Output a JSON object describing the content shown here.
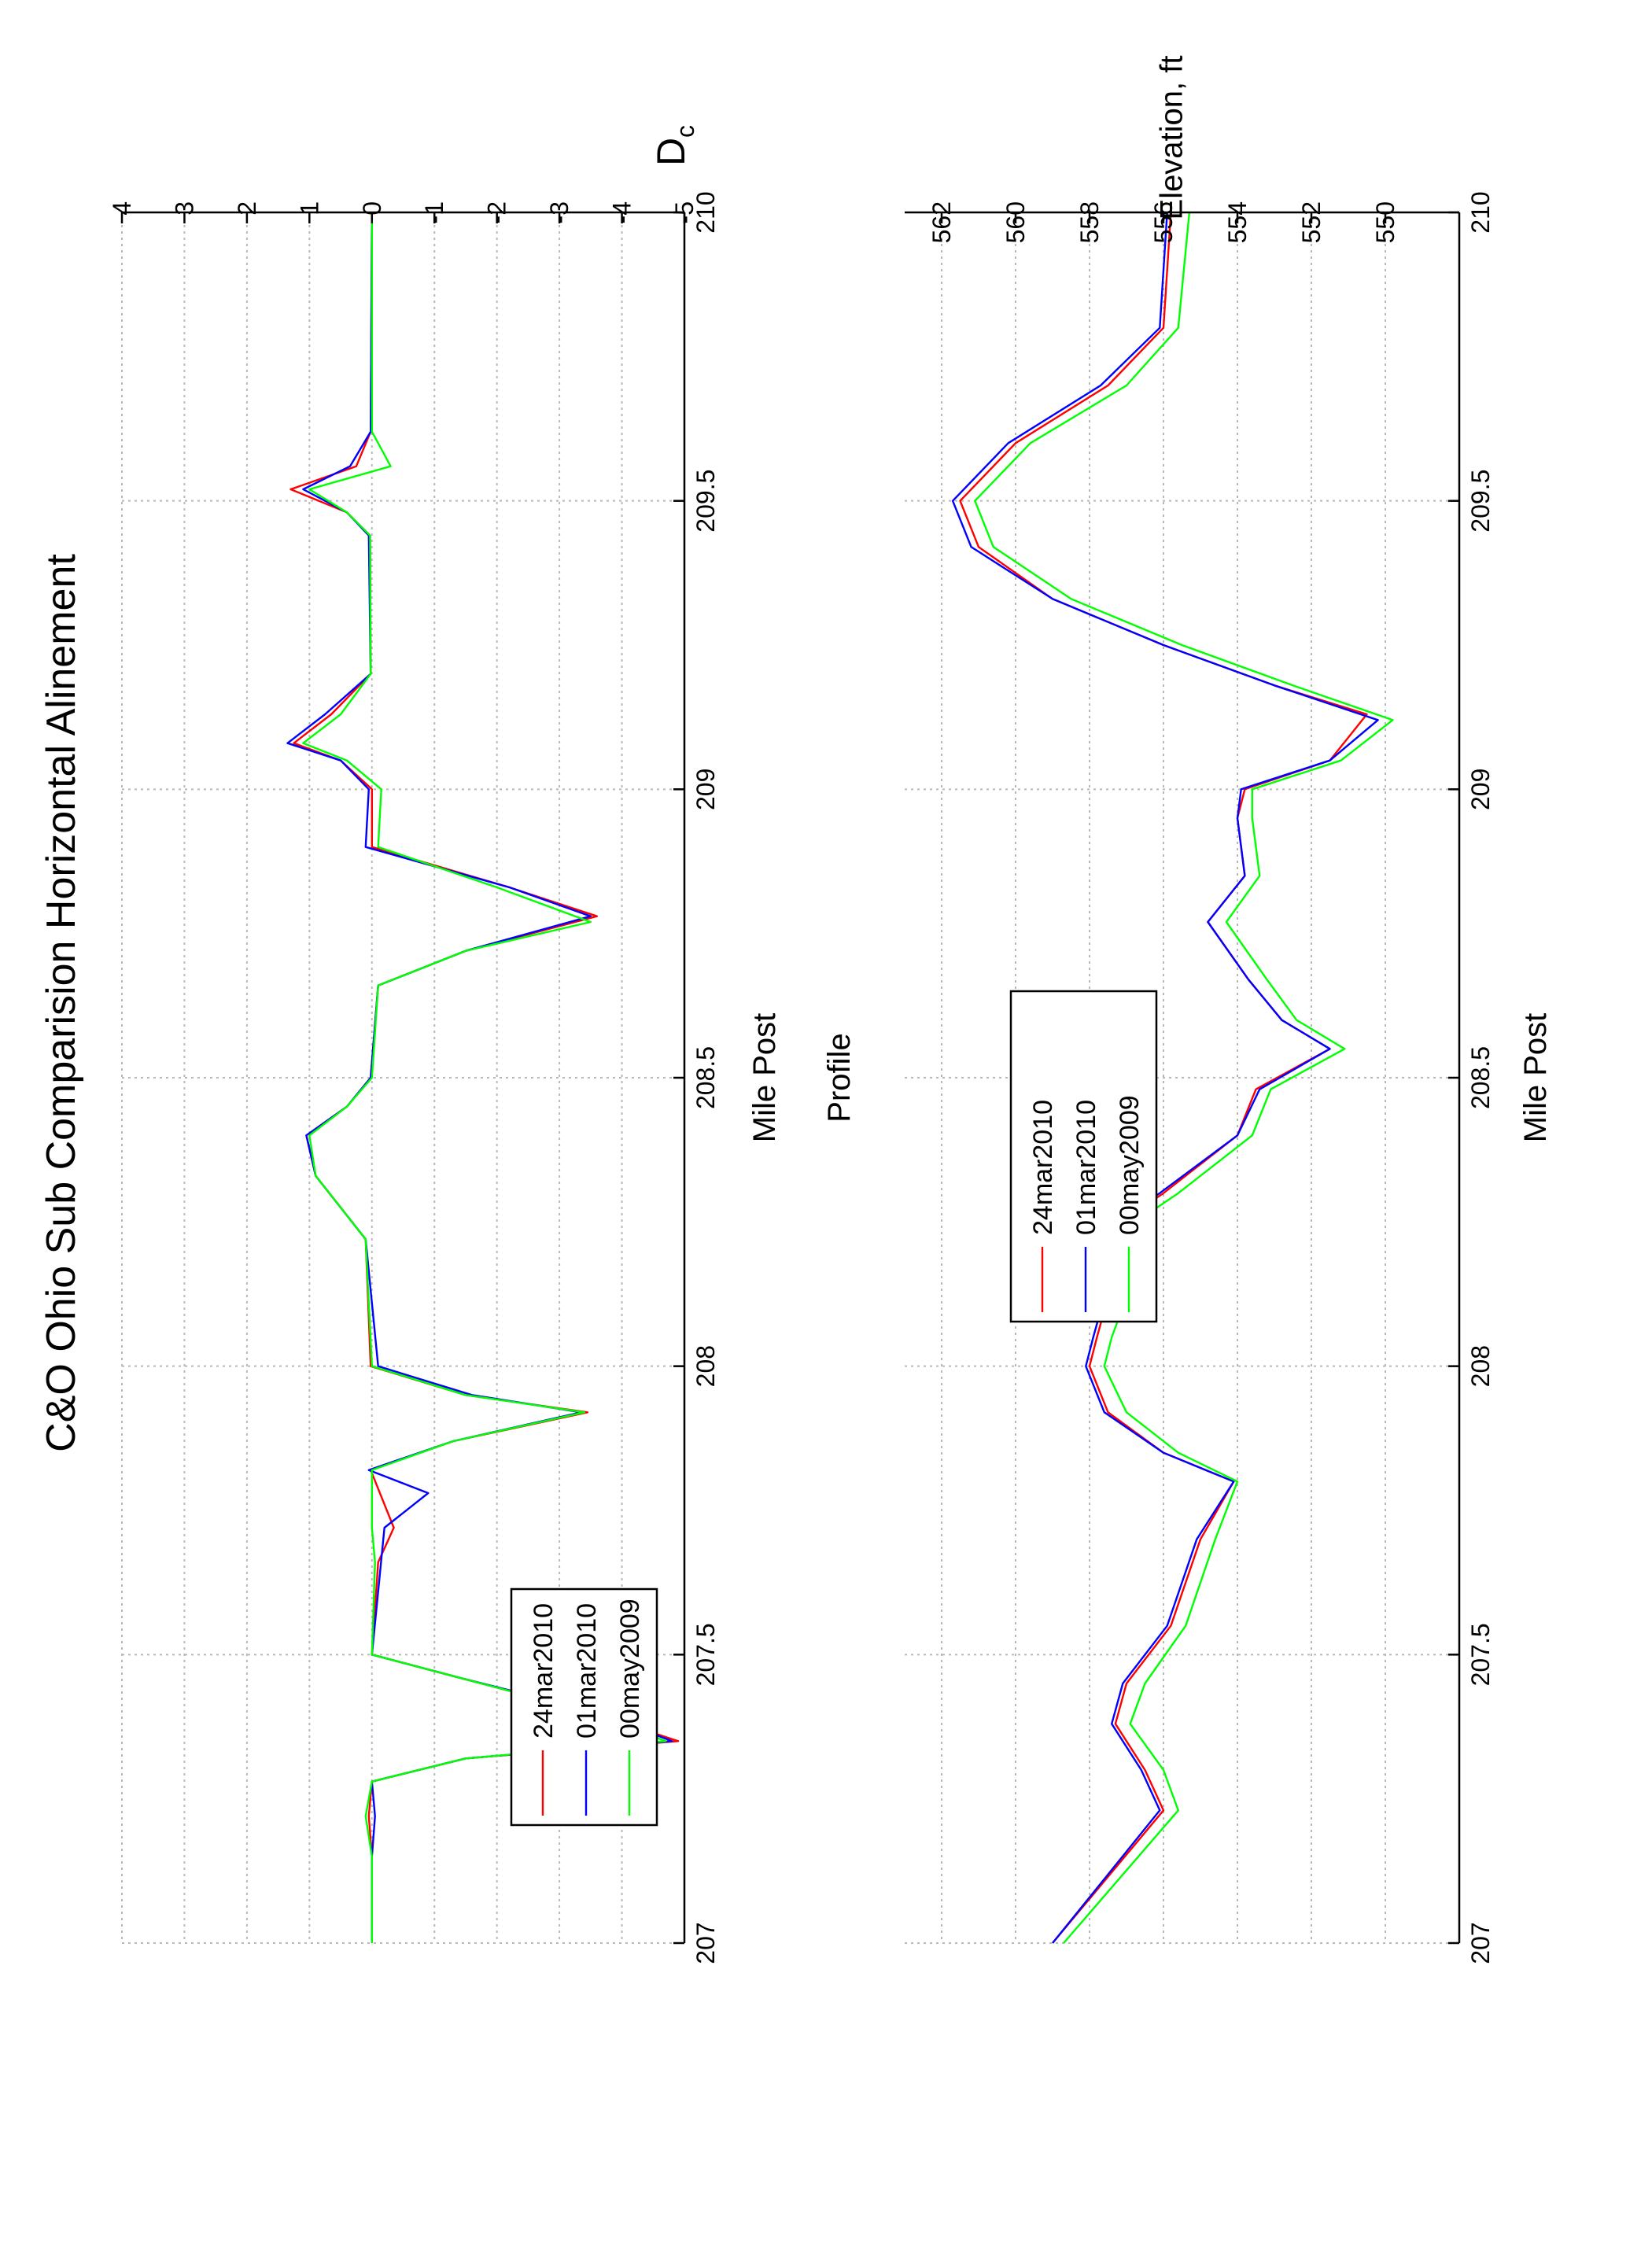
{
  "title": "C&O Ohio Sub Comparision Horizontal Alinement",
  "colors": {
    "24mar2010": "#ff0000",
    "01mar2010": "#0000ff",
    "00may2009": "#00ff00"
  },
  "chart_data": [
    {
      "type": "line",
      "title": "C&O Ohio Sub Comparision Horizontal Alinement",
      "xlabel": "Mile Post",
      "ylabel": "D",
      "ylabel_subscript": "c",
      "xlim": [
        210,
        207
      ],
      "ylim": [
        -5,
        4
      ],
      "xticks": [
        "210",
        "209.5",
        "209",
        "208.5",
        "208",
        "207.5",
        "207"
      ],
      "yticks": [
        "4",
        "3",
        "2",
        "1",
        "0",
        "-1",
        "-2",
        "-3",
        "-4",
        "-5"
      ],
      "grid": true,
      "legend": "bottom-left",
      "series": [
        {
          "name": "24mar2010",
          "color": "#ff0000",
          "points": [
            [
              210,
              0
            ],
            [
              209.62,
              0.02
            ],
            [
              209.56,
              0.25
            ],
            [
              209.52,
              1.3
            ],
            [
              209.48,
              0.4
            ],
            [
              209.44,
              0.03
            ],
            [
              209.2,
              0.02
            ],
            [
              209.13,
              0.65
            ],
            [
              209.08,
              1.25
            ],
            [
              209.05,
              0.5
            ],
            [
              209.0,
              0
            ],
            [
              208.9,
              0
            ],
            [
              208.83,
              -2.2
            ],
            [
              208.78,
              -3.6
            ],
            [
              208.72,
              -1.5
            ],
            [
              208.66,
              -0.1
            ],
            [
              208.5,
              0.02
            ],
            [
              208.45,
              0.4
            ],
            [
              208.4,
              1.05
            ],
            [
              208.33,
              0.9
            ],
            [
              208.22,
              0.1
            ],
            [
              208.0,
              0.02
            ],
            [
              207.95,
              -1.5
            ],
            [
              207.92,
              -3.45
            ],
            [
              207.87,
              -1.3
            ],
            [
              207.82,
              0.02
            ],
            [
              207.72,
              -0.35
            ],
            [
              207.66,
              -0.1
            ],
            [
              207.5,
              0
            ],
            [
              207.46,
              -1.4
            ],
            [
              207.4,
              -3.5
            ],
            [
              207.35,
              -4.9
            ],
            [
              207.32,
              -1.5
            ],
            [
              207.28,
              0
            ],
            [
              207.22,
              0.05
            ],
            [
              207.15,
              0
            ],
            [
              207.0,
              0
            ]
          ]
        },
        {
          "name": "01mar2010",
          "color": "#0000ff",
          "points": [
            [
              210,
              0
            ],
            [
              209.62,
              0.02
            ],
            [
              209.56,
              0.35
            ],
            [
              209.52,
              1.1
            ],
            [
              209.48,
              0.4
            ],
            [
              209.44,
              0.05
            ],
            [
              209.2,
              0.02
            ],
            [
              209.13,
              0.75
            ],
            [
              209.08,
              1.35
            ],
            [
              209.05,
              0.5
            ],
            [
              209.0,
              0.05
            ],
            [
              208.9,
              0.1
            ],
            [
              208.83,
              -2.2
            ],
            [
              208.78,
              -3.5
            ],
            [
              208.72,
              -1.5
            ],
            [
              208.66,
              -0.1
            ],
            [
              208.5,
              0.02
            ],
            [
              208.45,
              0.4
            ],
            [
              208.4,
              1.05
            ],
            [
              208.33,
              0.9
            ],
            [
              208.22,
              0.1
            ],
            [
              208.0,
              -0.1
            ],
            [
              207.95,
              -1.6
            ],
            [
              207.92,
              -3.35
            ],
            [
              207.87,
              -1.3
            ],
            [
              207.82,
              0.05
            ],
            [
              207.78,
              -0.9
            ],
            [
              207.72,
              -0.2
            ],
            [
              207.5,
              0
            ],
            [
              207.46,
              -1.4
            ],
            [
              207.4,
              -3.6
            ],
            [
              207.35,
              -4.8
            ],
            [
              207.32,
              -1.5
            ],
            [
              207.28,
              0
            ],
            [
              207.22,
              -0.05
            ],
            [
              207.15,
              0
            ],
            [
              207.0,
              0
            ]
          ]
        },
        {
          "name": "00may2009",
          "color": "#00ff00",
          "points": [
            [
              210,
              0
            ],
            [
              209.62,
              0.0
            ],
            [
              209.56,
              -0.3
            ],
            [
              209.52,
              1.0
            ],
            [
              209.48,
              0.4
            ],
            [
              209.44,
              0.03
            ],
            [
              209.2,
              0.02
            ],
            [
              209.13,
              0.5
            ],
            [
              209.08,
              1.1
            ],
            [
              209.05,
              0.4
            ],
            [
              209.0,
              -0.15
            ],
            [
              208.9,
              -0.1
            ],
            [
              208.83,
              -2.0
            ],
            [
              208.77,
              -3.5
            ],
            [
              208.72,
              -1.5
            ],
            [
              208.66,
              -0.1
            ],
            [
              208.5,
              0.0
            ],
            [
              208.45,
              0.4
            ],
            [
              208.4,
              1.0
            ],
            [
              208.33,
              0.9
            ],
            [
              208.22,
              0.1
            ],
            [
              208.0,
              0.0
            ],
            [
              207.95,
              -1.5
            ],
            [
              207.92,
              -3.4
            ],
            [
              207.87,
              -1.3
            ],
            [
              207.82,
              0.0
            ],
            [
              207.72,
              0.0
            ],
            [
              207.66,
              -0.05
            ],
            [
              207.5,
              0
            ],
            [
              207.46,
              -1.4
            ],
            [
              207.4,
              -3.5
            ],
            [
              207.35,
              -4.7
            ],
            [
              207.32,
              -1.5
            ],
            [
              207.28,
              0
            ],
            [
              207.22,
              0.1
            ],
            [
              207.15,
              0
            ],
            [
              207.0,
              0
            ]
          ]
        }
      ]
    },
    {
      "type": "line",
      "title": "Profile",
      "xlabel": "Mile Post",
      "ylabel": "Elevation, ft",
      "xlim": [
        210,
        207
      ],
      "ylim": [
        548,
        563
      ],
      "xticks": [
        "210",
        "209.5",
        "209",
        "208.5",
        "208",
        "207.5",
        "207"
      ],
      "yticks": [
        "562",
        "560",
        "558",
        "556",
        "554",
        "552",
        "550"
      ],
      "grid": true,
      "legend": "center-left",
      "series": [
        {
          "name": "24mar2010",
          "color": "#ff0000",
          "points": [
            [
              210,
              555.8
            ],
            [
              209.8,
              556.0
            ],
            [
              209.7,
              557.5
            ],
            [
              209.6,
              560.0
            ],
            [
              209.5,
              561.5
            ],
            [
              209.42,
              561.0
            ],
            [
              209.33,
              559.0
            ],
            [
              209.25,
              556.0
            ],
            [
              209.18,
              553.0
            ],
            [
              209.13,
              550.5
            ],
            [
              209.05,
              551.5
            ],
            [
              209.0,
              553.8
            ],
            [
              208.95,
              554.0
            ],
            [
              208.85,
              553.8
            ],
            [
              208.77,
              554.8
            ],
            [
              208.67,
              553.7
            ],
            [
              208.6,
              552.8
            ],
            [
              208.55,
              551.5
            ],
            [
              208.48,
              553.5
            ],
            [
              208.4,
              554.0
            ],
            [
              208.3,
              556.0
            ],
            [
              208.23,
              557.6
            ],
            [
              208.18,
              558.0
            ],
            [
              208.12,
              557.5
            ],
            [
              208.05,
              557.8
            ],
            [
              208.0,
              558.0
            ],
            [
              207.92,
              557.5
            ],
            [
              207.85,
              556.0
            ],
            [
              207.8,
              554.1
            ],
            [
              207.7,
              555.0
            ],
            [
              207.55,
              555.8
            ],
            [
              207.45,
              557.0
            ],
            [
              207.38,
              557.3
            ],
            [
              207.3,
              556.5
            ],
            [
              207.23,
              556.0
            ],
            [
              207.0,
              559.0
            ]
          ]
        },
        {
          "name": "01mar2010",
          "color": "#0000ff",
          "points": [
            [
              210,
              555.9
            ],
            [
              209.8,
              556.1
            ],
            [
              209.7,
              557.7
            ],
            [
              209.6,
              560.2
            ],
            [
              209.5,
              561.7
            ],
            [
              209.42,
              561.2
            ],
            [
              209.33,
              559.0
            ],
            [
              209.25,
              556.0
            ],
            [
              209.18,
              553.0
            ],
            [
              209.12,
              550.2
            ],
            [
              209.05,
              551.5
            ],
            [
              209.0,
              553.9
            ],
            [
              208.95,
              554.0
            ],
            [
              208.85,
              553.8
            ],
            [
              208.77,
              554.8
            ],
            [
              208.67,
              553.7
            ],
            [
              208.6,
              552.8
            ],
            [
              208.55,
              551.5
            ],
            [
              208.48,
              553.4
            ],
            [
              208.4,
              554.0
            ],
            [
              208.3,
              556.1
            ],
            [
              208.23,
              557.8
            ],
            [
              208.18,
              558.0
            ],
            [
              208.12,
              557.6
            ],
            [
              208.05,
              557.9
            ],
            [
              208.0,
              558.1
            ],
            [
              207.92,
              557.6
            ],
            [
              207.85,
              556.0
            ],
            [
              207.8,
              554.1
            ],
            [
              207.7,
              555.1
            ],
            [
              207.55,
              555.9
            ],
            [
              207.45,
              557.1
            ],
            [
              207.38,
              557.4
            ],
            [
              207.3,
              556.6
            ],
            [
              207.23,
              556.1
            ],
            [
              207.0,
              559.0
            ]
          ]
        },
        {
          "name": "00may2009",
          "color": "#00ff00",
          "points": [
            [
              210,
              555.3
            ],
            [
              209.8,
              555.6
            ],
            [
              209.7,
              557.0
            ],
            [
              209.6,
              559.6
            ],
            [
              209.5,
              561.1
            ],
            [
              209.42,
              560.6
            ],
            [
              209.33,
              558.5
            ],
            [
              209.25,
              555.5
            ],
            [
              209.18,
              552.5
            ],
            [
              209.12,
              549.8
            ],
            [
              209.05,
              551.2
            ],
            [
              209.0,
              553.6
            ],
            [
              208.95,
              553.6
            ],
            [
              208.85,
              553.4
            ],
            [
              208.77,
              554.3
            ],
            [
              208.67,
              553.2
            ],
            [
              208.6,
              552.4
            ],
            [
              208.55,
              551.1
            ],
            [
              208.48,
              553.1
            ],
            [
              208.4,
              553.6
            ],
            [
              208.3,
              555.6
            ],
            [
              208.23,
              557.2
            ],
            [
              208.18,
              557.5
            ],
            [
              208.12,
              557.0
            ],
            [
              208.05,
              557.4
            ],
            [
              208.0,
              557.6
            ],
            [
              207.92,
              557.0
            ],
            [
              207.85,
              555.6
            ],
            [
              207.8,
              554.0
            ],
            [
              207.7,
              554.6
            ],
            [
              207.55,
              555.4
            ],
            [
              207.45,
              556.5
            ],
            [
              207.38,
              556.9
            ],
            [
              207.3,
              556.0
            ],
            [
              207.23,
              555.6
            ],
            [
              207.0,
              558.7
            ]
          ]
        }
      ]
    }
  ]
}
